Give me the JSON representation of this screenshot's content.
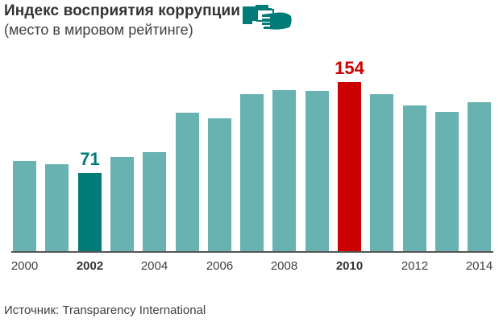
{
  "header": {
    "title": "Индекс восприятия коррупции",
    "subtitle": "(место в мировом рейтинге)",
    "icon": "hand-passing-envelope-icon"
  },
  "colors": {
    "bar": "#68b2b2",
    "highlight_low": "#007b78",
    "highlight_high": "#cc0000",
    "axis": "#555555"
  },
  "footer": {
    "source": "Источник: Transparency International"
  },
  "chart_data": {
    "type": "bar",
    "title": "Индекс восприятия коррупции",
    "subtitle": "(место в мировом рейтинге)",
    "xlabel": "",
    "ylabel": "",
    "categories": [
      "2000",
      "2001",
      "2002",
      "2003",
      "2004",
      "2005",
      "2006",
      "2007",
      "2008",
      "2009",
      "2010",
      "2011",
      "2012",
      "2013",
      "2014"
    ],
    "values": [
      82,
      79,
      71,
      86,
      90,
      126,
      121,
      143,
      147,
      146,
      154,
      143,
      133,
      127,
      136
    ],
    "ylim": [
      0,
      160
    ],
    "x_tick_labels": [
      "2000",
      "2002",
      "2004",
      "2006",
      "2008",
      "2010",
      "2012",
      "2014"
    ],
    "bold_ticks": [
      "2002",
      "2010"
    ],
    "annotations": [
      {
        "category": "2002",
        "label": "71",
        "color": "#007b78"
      },
      {
        "category": "2010",
        "label": "154",
        "color": "#cc0000"
      }
    ],
    "grid": false,
    "legend": null,
    "source": "Источник: Transparency International"
  }
}
